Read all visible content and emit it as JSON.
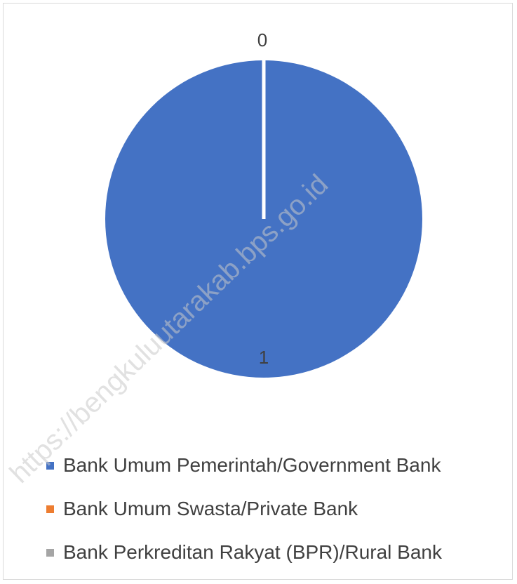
{
  "chart_data": {
    "type": "pie",
    "title": "",
    "categories": [
      "Bank Umum Pemerintah/Government Bank",
      "Bank Umum Swasta/Private Bank",
      "Bank Perkreditan Rakyat (BPR)/Rural Bank"
    ],
    "values": [
      1,
      0,
      0
    ],
    "data_labels": [
      "1",
      "0",
      ""
    ],
    "colors": [
      "#4472c4",
      "#ed7d31",
      "#a5a5a5"
    ],
    "legend_position": "bottom",
    "grid": false
  },
  "watermark": {
    "text": "https://bengkuluutarakab.bps.go.id"
  }
}
